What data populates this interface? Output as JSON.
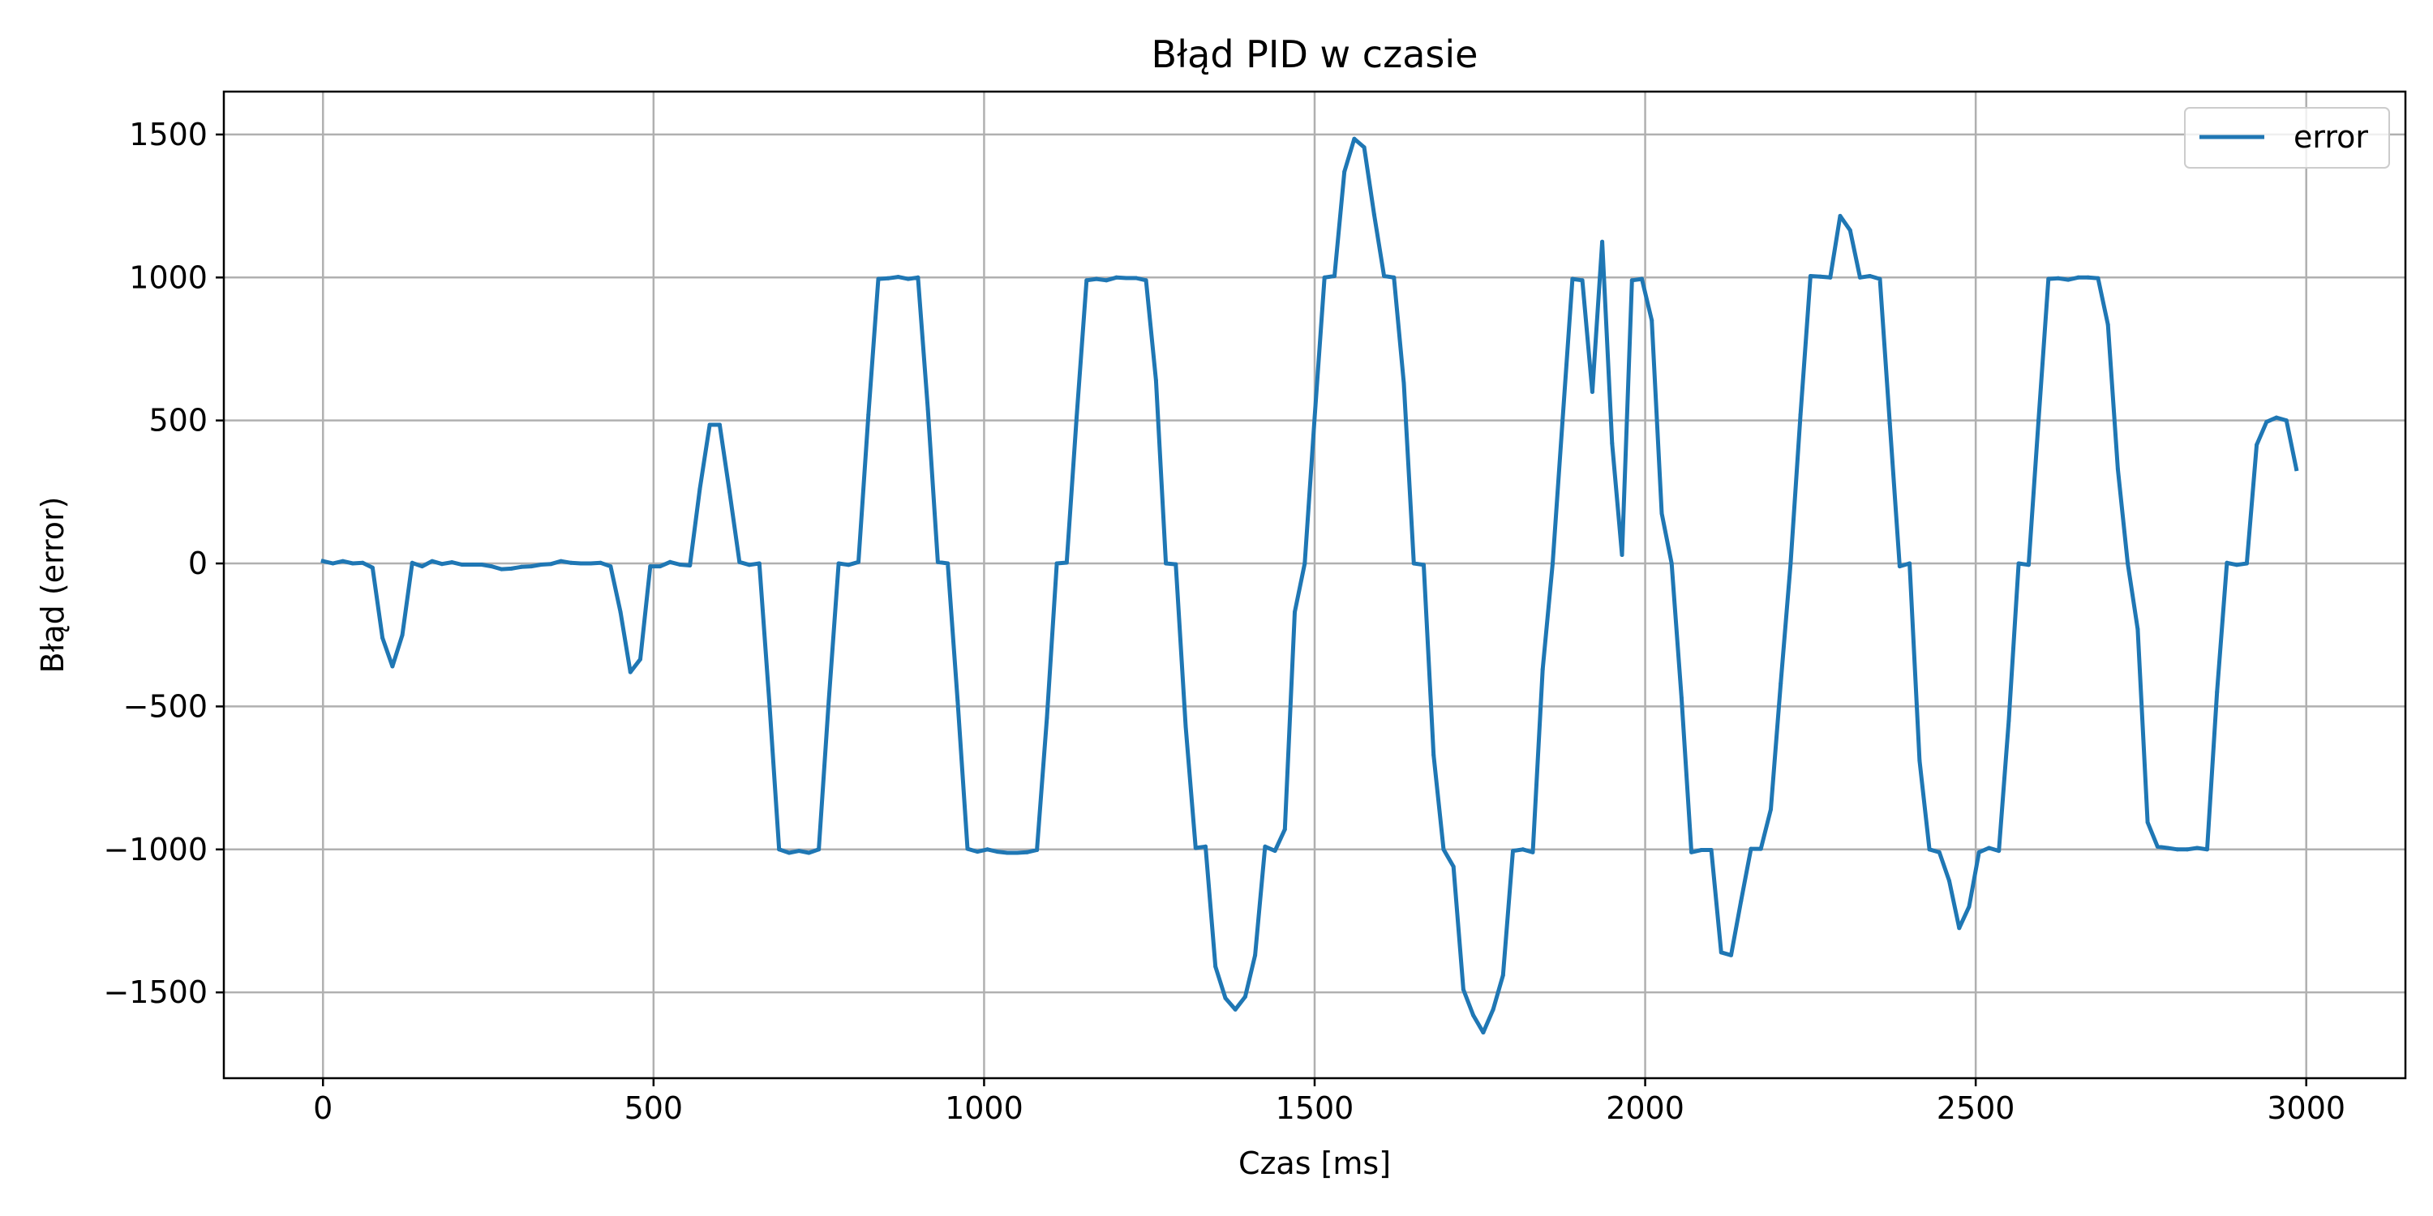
{
  "chart_data": {
    "type": "line",
    "title": "Błąd PID w czasie",
    "xlabel": "Czas [ms]",
    "ylabel": "Błąd (error)",
    "xlim": [
      -150,
      3150
    ],
    "ylim": [
      -1800,
      1650
    ],
    "xticks": [
      0,
      500,
      1000,
      1500,
      2000,
      2500,
      3000
    ],
    "yticks": [
      -1500,
      -1000,
      -500,
      0,
      500,
      1000,
      1500
    ],
    "xtick_labels": [
      "0",
      "500",
      "1000",
      "1500",
      "2000",
      "2500",
      "3000"
    ],
    "ytick_labels": [
      "−1500",
      "−1000",
      "−500",
      "0",
      "500",
      "1000",
      "1500"
    ],
    "grid": true,
    "legend": "top-right",
    "series": [
      {
        "name": "error",
        "color": "#1f77b4",
        "points": [
          [
            0,
            8
          ],
          [
            15,
            0
          ],
          [
            30,
            8
          ],
          [
            45,
            0
          ],
          [
            60,
            2
          ],
          [
            75,
            -15
          ],
          [
            90,
            -260
          ],
          [
            105,
            -360
          ],
          [
            120,
            -250
          ],
          [
            135,
            2
          ],
          [
            150,
            -10
          ],
          [
            165,
            8
          ],
          [
            180,
            -2
          ],
          [
            195,
            4
          ],
          [
            210,
            -4
          ],
          [
            225,
            -4
          ],
          [
            240,
            -4
          ],
          [
            255,
            -10
          ],
          [
            270,
            -20
          ],
          [
            285,
            -18
          ],
          [
            300,
            -12
          ],
          [
            315,
            -10
          ],
          [
            330,
            -4
          ],
          [
            345,
            -2
          ],
          [
            360,
            8
          ],
          [
            375,
            2
          ],
          [
            390,
            0
          ],
          [
            405,
            0
          ],
          [
            420,
            2
          ],
          [
            435,
            -10
          ],
          [
            450,
            -170
          ],
          [
            465,
            -380
          ],
          [
            480,
            -335
          ],
          [
            495,
            -10
          ],
          [
            510,
            -10
          ],
          [
            525,
            5
          ],
          [
            540,
            -4
          ],
          [
            555,
            -7
          ],
          [
            570,
            260
          ],
          [
            585,
            485
          ],
          [
            600,
            485
          ],
          [
            615,
            250
          ],
          [
            630,
            5
          ],
          [
            645,
            -5
          ],
          [
            660,
            0
          ],
          [
            675,
            -480
          ],
          [
            690,
            -1000
          ],
          [
            705,
            -1012
          ],
          [
            720,
            -1005
          ],
          [
            735,
            -1012
          ],
          [
            750,
            -1000
          ],
          [
            765,
            -480
          ],
          [
            780,
            0
          ],
          [
            795,
            -5
          ],
          [
            810,
            5
          ],
          [
            825,
            520
          ],
          [
            840,
            995
          ],
          [
            855,
            997
          ],
          [
            870,
            1002
          ],
          [
            885,
            995
          ],
          [
            900,
            1000
          ],
          [
            915,
            540
          ],
          [
            930,
            5
          ],
          [
            945,
            0
          ],
          [
            960,
            -480
          ],
          [
            975,
            -998
          ],
          [
            990,
            -1008
          ],
          [
            1005,
            -1000
          ],
          [
            1020,
            -1008
          ],
          [
            1035,
            -1012
          ],
          [
            1050,
            -1012
          ],
          [
            1065,
            -1010
          ],
          [
            1080,
            -1002
          ],
          [
            1095,
            -540
          ],
          [
            1110,
            0
          ],
          [
            1125,
            3
          ],
          [
            1140,
            510
          ],
          [
            1155,
            990
          ],
          [
            1170,
            995
          ],
          [
            1185,
            990
          ],
          [
            1200,
            1000
          ],
          [
            1215,
            998
          ],
          [
            1230,
            998
          ],
          [
            1245,
            990
          ],
          [
            1260,
            640
          ],
          [
            1275,
            0
          ],
          [
            1290,
            -3
          ],
          [
            1305,
            -570
          ],
          [
            1320,
            -995
          ],
          [
            1335,
            -990
          ],
          [
            1350,
            -1410
          ],
          [
            1365,
            -1520
          ],
          [
            1380,
            -1560
          ],
          [
            1395,
            -1515
          ],
          [
            1410,
            -1370
          ],
          [
            1425,
            -990
          ],
          [
            1440,
            -1005
          ],
          [
            1455,
            -930
          ],
          [
            1470,
            -170
          ],
          [
            1485,
            0
          ],
          [
            1500,
            510
          ],
          [
            1515,
            1000
          ],
          [
            1530,
            1005
          ],
          [
            1545,
            1370
          ],
          [
            1560,
            1485
          ],
          [
            1575,
            1455
          ],
          [
            1590,
            1220
          ],
          [
            1605,
            1005
          ],
          [
            1620,
            1000
          ],
          [
            1635,
            630
          ],
          [
            1650,
            0
          ],
          [
            1665,
            -5
          ],
          [
            1680,
            -670
          ],
          [
            1695,
            -1000
          ],
          [
            1710,
            -1060
          ],
          [
            1725,
            -1490
          ],
          [
            1740,
            -1580
          ],
          [
            1755,
            -1640
          ],
          [
            1770,
            -1560
          ],
          [
            1785,
            -1440
          ],
          [
            1800,
            -1005
          ],
          [
            1815,
            -1000
          ],
          [
            1830,
            -1010
          ],
          [
            1845,
            -370
          ],
          [
            1860,
            0
          ],
          [
            1875,
            500
          ],
          [
            1890,
            995
          ],
          [
            1905,
            990
          ],
          [
            1920,
            600
          ],
          [
            1935,
            1125
          ],
          [
            1950,
            420
          ],
          [
            1965,
            30
          ],
          [
            1980,
            990
          ],
          [
            1995,
            995
          ],
          [
            2010,
            850
          ],
          [
            2025,
            175
          ],
          [
            2040,
            0
          ],
          [
            2055,
            -470
          ],
          [
            2070,
            -1010
          ],
          [
            2085,
            -1002
          ],
          [
            2100,
            -1002
          ],
          [
            2115,
            -1360
          ],
          [
            2130,
            -1370
          ],
          [
            2145,
            -1180
          ],
          [
            2160,
            -998
          ],
          [
            2175,
            -998
          ],
          [
            2190,
            -860
          ],
          [
            2205,
            -420
          ],
          [
            2220,
            0
          ],
          [
            2235,
            520
          ],
          [
            2250,
            1005
          ],
          [
            2265,
            1003
          ],
          [
            2280,
            1000
          ],
          [
            2295,
            1215
          ],
          [
            2310,
            1165
          ],
          [
            2325,
            1000
          ],
          [
            2340,
            1005
          ],
          [
            2355,
            995
          ],
          [
            2370,
            490
          ],
          [
            2385,
            -10
          ],
          [
            2400,
            0
          ],
          [
            2415,
            -690
          ],
          [
            2430,
            -1000
          ],
          [
            2445,
            -1010
          ],
          [
            2460,
            -1110
          ],
          [
            2475,
            -1275
          ],
          [
            2490,
            -1200
          ],
          [
            2505,
            -1010
          ],
          [
            2520,
            -995
          ],
          [
            2535,
            -1005
          ],
          [
            2550,
            -550
          ],
          [
            2565,
            0
          ],
          [
            2580,
            -5
          ],
          [
            2595,
            500
          ],
          [
            2610,
            995
          ],
          [
            2625,
            997
          ],
          [
            2640,
            992
          ],
          [
            2655,
            1000
          ],
          [
            2670,
            1000
          ],
          [
            2685,
            997
          ],
          [
            2700,
            835
          ],
          [
            2715,
            330
          ],
          [
            2730,
            0
          ],
          [
            2745,
            -230
          ],
          [
            2760,
            -905
          ],
          [
            2775,
            -990
          ],
          [
            2790,
            -995
          ],
          [
            2805,
            -1000
          ],
          [
            2820,
            -1000
          ],
          [
            2835,
            -995
          ],
          [
            2850,
            -1000
          ],
          [
            2865,
            -450
          ],
          [
            2880,
            2
          ],
          [
            2895,
            -5
          ],
          [
            2910,
            0
          ],
          [
            2925,
            415
          ],
          [
            2940,
            495
          ],
          [
            2955,
            510
          ],
          [
            2970,
            500
          ],
          [
            2985,
            330
          ]
        ]
      }
    ]
  }
}
